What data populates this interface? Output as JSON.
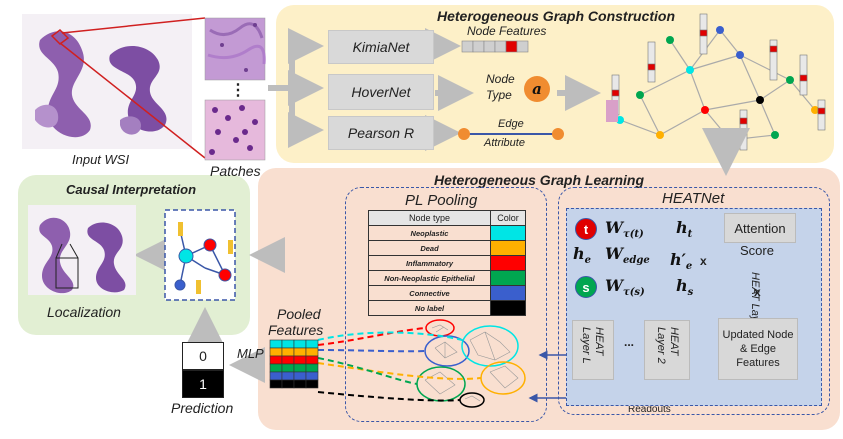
{
  "left": {
    "input_wsi_label": "Input WSI",
    "patches_label": "Patches",
    "patch_ellipsis": "⋮"
  },
  "construction": {
    "title": "Heterogeneous Graph Construction",
    "boxes": [
      "KimiaNet",
      "HoverNet",
      "Pearson R"
    ],
    "node_features_label": "Node Features",
    "node_type_label_1": "Node",
    "node_type_label_2": "Type",
    "node_type_symbol": "a",
    "edge_label_1": "Edge",
    "edge_label_2": "Attribute"
  },
  "causal": {
    "title": "Causal Interpretation",
    "localization_label": "Localization"
  },
  "learning": {
    "title": "Heterogeneous Graph Learning",
    "pl_pooling_title": "PL Pooling",
    "table_header": [
      "Node type",
      "Color"
    ],
    "node_types": [
      {
        "name": "Neoplastic",
        "color": "#00e5e5"
      },
      {
        "name": "Dead",
        "color": "#ffb000"
      },
      {
        "name": "Inflammatory",
        "color": "#ff0000"
      },
      {
        "name": "Non-Neoplastic Epithelial",
        "color": "#00a650"
      },
      {
        "name": "Connective",
        "color": "#3a5fcd"
      },
      {
        "name": "No label",
        "color": "#000000"
      }
    ],
    "pooled_features_label_1": "Pooled",
    "pooled_features_label_2": "Features",
    "mlp_label": "MLP",
    "prediction_values": [
      "0",
      "1"
    ],
    "prediction_label": "Prediction",
    "readouts_label": "Readouts"
  },
  "heatnet": {
    "title": "HEATNet",
    "node_t": "t",
    "node_s": "s",
    "he_label": "h",
    "he_sub": "e",
    "w_tau_t": "W",
    "w_tau_t_sub": "τ(t)",
    "w_edge": "W",
    "w_edge_sub": "edge",
    "w_tau_s": "W",
    "w_tau_s_sub": "τ(s)",
    "h_t": "h",
    "h_t_sub": "t",
    "h_e_prime": "h′",
    "h_e_prime_sub": "e",
    "h_s": "h",
    "h_s_sub": "s",
    "mult_symbol": "x",
    "attention_label_1": "Attention",
    "attention_label_2": "Score",
    "heat_layer_label": "HEAT Layer",
    "updated_label": "Updated Node & Edge Features",
    "layer_l_label_1": "HEAT",
    "layer_l_label_2": "Layer L",
    "layer_dots": "...",
    "layer_2_label_1": "HEAT",
    "layer_2_label_2": "Layer 2"
  }
}
